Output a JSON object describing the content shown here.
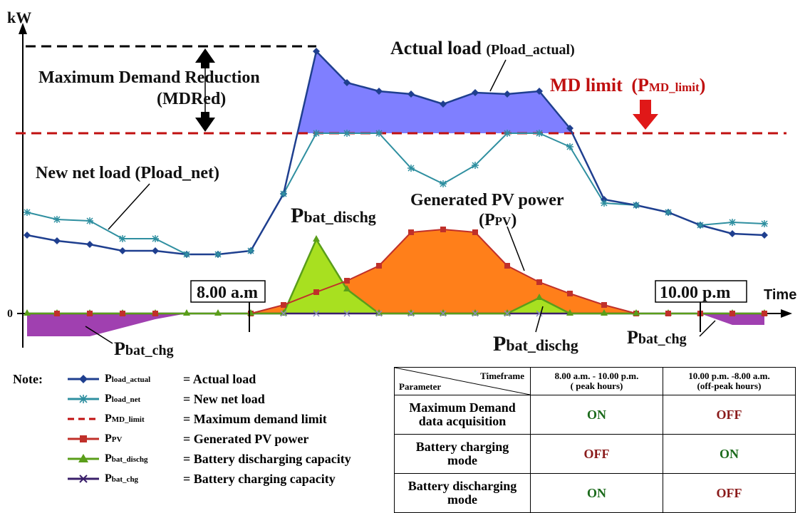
{
  "diagram": {
    "y_axis_label": "kW",
    "x_axis_label": "Time",
    "zero_label": "0",
    "labels": {
      "actual_load": "Actual load",
      "actual_load_sym": "(Pload_actual)",
      "mdred_line1": "Maximum Demand Reduction",
      "mdred_line2": "(MDRed)",
      "md_limit": "MD limit",
      "md_limit_sym_p": "(P",
      "md_limit_sym_sub": "MD_limit",
      "md_limit_sym_close": ")",
      "net_load": "New net load (Pload_net)",
      "pv_line1": "Generated PV power",
      "pv_line2_open": "(P",
      "pv_line2_sub": "PV",
      "pv_line2_close": ")",
      "bat_dischg_top_p": "P",
      "bat_dischg_top_sub": "bat_dischg",
      "bat_dischg_bottom_p": "P",
      "bat_dischg_bottom_sub": "bat_dischg",
      "bat_chg_left_p": "P",
      "bat_chg_left_sub": "bat_chg",
      "bat_chg_right_p": "P",
      "bat_chg_right_sub": "bat_chg",
      "time_start": "8.00 a.m",
      "time_end": "10.00 p.m"
    },
    "colors": {
      "actual_load": "#1f3f8f",
      "net_load": "#2f8fa0",
      "md_limit": "#c01010",
      "pv": "#c0302a",
      "pv_fill": "#ff7f1a",
      "actual_fill": "#7f7fff",
      "bat_dischg": "#5a9e1a",
      "bat_dischg_fill": "#a8e020",
      "bat_chg": "#3a1f6a",
      "bat_chg_fill": "#a040b0"
    }
  },
  "legend": {
    "note": "Note:",
    "items": [
      {
        "sym": "P",
        "sub": "load_actual",
        "desc": "= Actual load"
      },
      {
        "sym": "P",
        "sub": "load_net",
        "desc": "= New net load"
      },
      {
        "sym": "P",
        "sub": "MD_limit",
        "desc": "= Maximum demand limit"
      },
      {
        "sym": "P",
        "sub": "PV",
        "desc": "= Generated PV power"
      },
      {
        "sym": "P",
        "sub": "bat_dischg",
        "desc": "= Battery discharging capacity"
      },
      {
        "sym": "P",
        "sub": "bat_chg",
        "desc": "= Battery charging capacity"
      }
    ]
  },
  "table": {
    "header_timeframe": "Timeframe",
    "header_parameter": "Parameter",
    "col1_line1": "8.00 a.m. - 10.00 p.m.",
    "col1_line2": "( peak hours)",
    "col2_line1": "10.00 p.m. -8.00 a.m.",
    "col2_line2": "(off-peak hours)",
    "rows": [
      {
        "line1": "Maximum Demand",
        "line2": "data acquisition",
        "peak": "ON",
        "offpeak": "OFF"
      },
      {
        "line1": "Battery charging",
        "line2": "mode",
        "peak": "OFF",
        "offpeak": "ON"
      },
      {
        "line1": "Battery discharging",
        "line2": "mode",
        "peak": "ON",
        "offpeak": "OFF"
      }
    ]
  }
}
